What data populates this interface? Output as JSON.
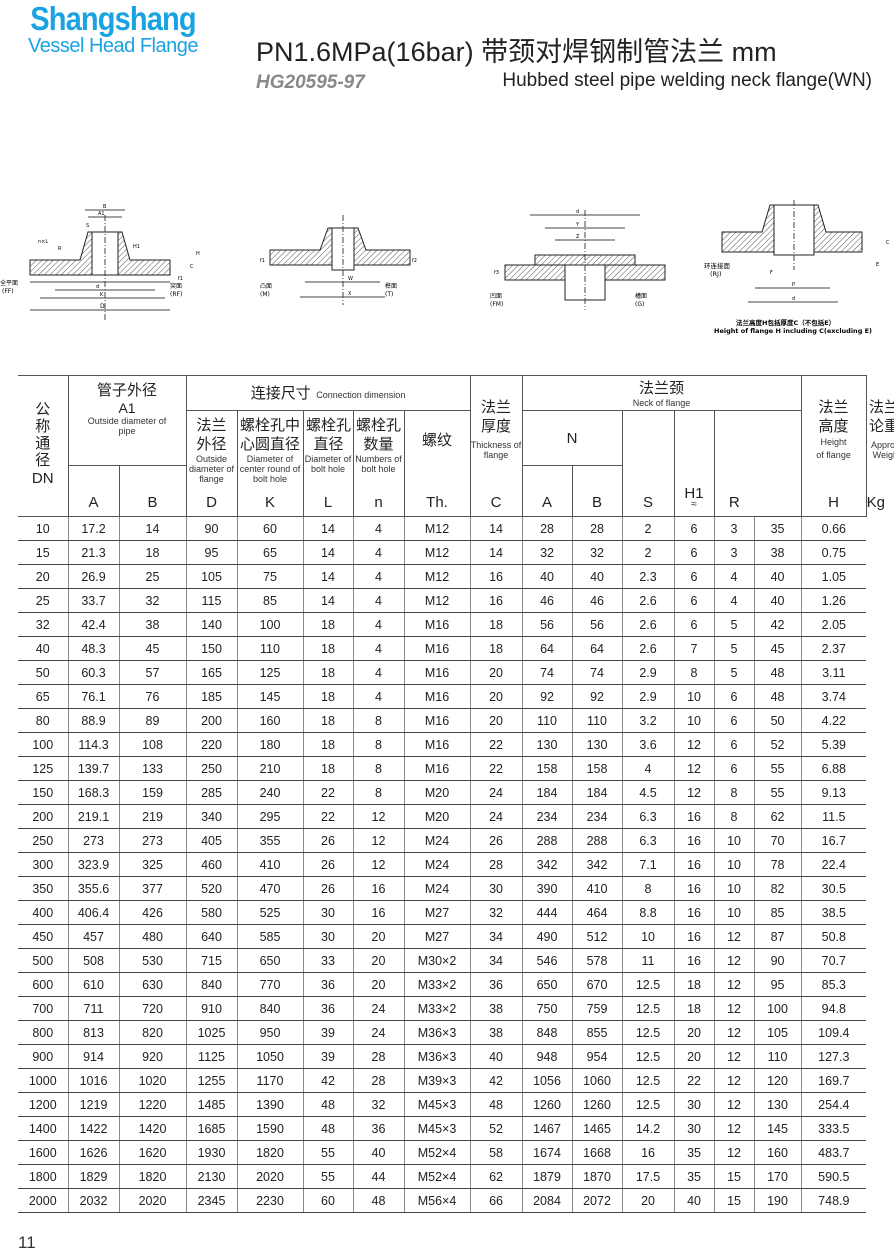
{
  "brand": {
    "name": "Shangshang",
    "tagline": "Vessel Head Flange",
    "color": "#1aa3e0"
  },
  "header": {
    "title": "PN1.6MPa(16bar) 带颈对焊钢制管法兰  mm",
    "standard": "HG20595-97",
    "subtitle": "Hubbed steel pipe welding neck flange(WN)"
  },
  "diagrams": {
    "d1": {
      "ff": "全平面",
      "ff_en": "(FF)",
      "rf": "突面",
      "rf_en": "(RF)",
      "dims": [
        "B",
        "A1",
        "S",
        "R",
        "n×L",
        "H1",
        "C",
        "H",
        "f1",
        "d",
        "K",
        "D"
      ]
    },
    "d2": {
      "m": "凸面",
      "m_en": "(M)",
      "t": "榫面",
      "t_en": "(T)",
      "dims": [
        "W",
        "X",
        "f1",
        "f2"
      ]
    },
    "d3": {
      "fm": "凹面",
      "fm_en": "(FM)",
      "g": "槽面",
      "g_en": "(G)",
      "dims": [
        "d",
        "Y",
        "Z",
        "f3"
      ]
    },
    "d4": {
      "rj": "环连接面",
      "rj_en": "(RJ)",
      "dims": [
        "F",
        "P",
        "d",
        "C",
        "E"
      ],
      "note_cn": "法兰高度H包括厚度C（不包括E）",
      "note_en": "Height of flange H including C(excluding E)"
    }
  },
  "table": {
    "headers": {
      "dn_cn": "公称通径",
      "dn": "DN",
      "pipe_cn": "管子外径",
      "pipe_sym": "A1",
      "pipe_en": "Outside diameter of pipe",
      "pipe_a": "A",
      "pipe_b": "B",
      "conn_cn": "连接尺寸",
      "conn_en": "Connection dimension",
      "d_cn": "法兰外径",
      "d_en": "Outside diameter of flange",
      "d": "D",
      "k_cn": "螺栓孔中心圆直径",
      "k_en": "Diameter of center round of bolt hole",
      "k": "K",
      "l_cn": "螺栓孔直径",
      "l_en": "Diameter of bolt hole",
      "l": "L",
      "n_cn": "螺栓孔数量",
      "n_en": "Numbers of bolt hole",
      "n": "n",
      "th_cn": "螺纹",
      "th": "Th.",
      "c_cn": "法兰厚度",
      "c_en": "Thickness of flange",
      "c": "C",
      "neck_cn": "法兰颈",
      "neck_en": "Neck of flange",
      "neck_n": "N",
      "neck_a": "A",
      "neck_b": "B",
      "s": "S",
      "h1": "H1",
      "h1_sub": "≈",
      "r": "R",
      "h_cn": "法兰高度",
      "h_en": "Height of flange",
      "h": "H",
      "w_cn": "法兰理论重量",
      "w_en": "Approx. Weight",
      "w": "Kg"
    },
    "rows": [
      [
        "10",
        "17.2",
        "14",
        "90",
        "60",
        "14",
        "4",
        "M12",
        "14",
        "28",
        "28",
        "2",
        "6",
        "3",
        "35",
        "0.66"
      ],
      [
        "15",
        "21.3",
        "18",
        "95",
        "65",
        "14",
        "4",
        "M12",
        "14",
        "32",
        "32",
        "2",
        "6",
        "3",
        "38",
        "0.75"
      ],
      [
        "20",
        "26.9",
        "25",
        "105",
        "75",
        "14",
        "4",
        "M12",
        "16",
        "40",
        "40",
        "2.3",
        "6",
        "4",
        "40",
        "1.05"
      ],
      [
        "25",
        "33.7",
        "32",
        "115",
        "85",
        "14",
        "4",
        "M12",
        "16",
        "46",
        "46",
        "2.6",
        "6",
        "4",
        "40",
        "1.26"
      ],
      [
        "32",
        "42.4",
        "38",
        "140",
        "100",
        "18",
        "4",
        "M16",
        "18",
        "56",
        "56",
        "2.6",
        "6",
        "5",
        "42",
        "2.05"
      ],
      [
        "40",
        "48.3",
        "45",
        "150",
        "110",
        "18",
        "4",
        "M16",
        "18",
        "64",
        "64",
        "2.6",
        "7",
        "5",
        "45",
        "2.37"
      ],
      [
        "50",
        "60.3",
        "57",
        "165",
        "125",
        "18",
        "4",
        "M16",
        "20",
        "74",
        "74",
        "2.9",
        "8",
        "5",
        "48",
        "3.11"
      ],
      [
        "65",
        "76.1",
        "76",
        "185",
        "145",
        "18",
        "4",
        "M16",
        "20",
        "92",
        "92",
        "2.9",
        "10",
        "6",
        "48",
        "3.74"
      ],
      [
        "80",
        "88.9",
        "89",
        "200",
        "160",
        "18",
        "8",
        "M16",
        "20",
        "110",
        "110",
        "3.2",
        "10",
        "6",
        "50",
        "4.22"
      ],
      [
        "100",
        "114.3",
        "108",
        "220",
        "180",
        "18",
        "8",
        "M16",
        "22",
        "130",
        "130",
        "3.6",
        "12",
        "6",
        "52",
        "5.39"
      ],
      [
        "125",
        "139.7",
        "133",
        "250",
        "210",
        "18",
        "8",
        "M16",
        "22",
        "158",
        "158",
        "4",
        "12",
        "6",
        "55",
        "6.88"
      ],
      [
        "150",
        "168.3",
        "159",
        "285",
        "240",
        "22",
        "8",
        "M20",
        "24",
        "184",
        "184",
        "4.5",
        "12",
        "8",
        "55",
        "9.13"
      ],
      [
        "200",
        "219.1",
        "219",
        "340",
        "295",
        "22",
        "12",
        "M20",
        "24",
        "234",
        "234",
        "6.3",
        "16",
        "8",
        "62",
        "11.5"
      ],
      [
        "250",
        "273",
        "273",
        "405",
        "355",
        "26",
        "12",
        "M24",
        "26",
        "288",
        "288",
        "6.3",
        "16",
        "10",
        "70",
        "16.7"
      ],
      [
        "300",
        "323.9",
        "325",
        "460",
        "410",
        "26",
        "12",
        "M24",
        "28",
        "342",
        "342",
        "7.1",
        "16",
        "10",
        "78",
        "22.4"
      ],
      [
        "350",
        "355.6",
        "377",
        "520",
        "470",
        "26",
        "16",
        "M24",
        "30",
        "390",
        "410",
        "8",
        "16",
        "10",
        "82",
        "30.5"
      ],
      [
        "400",
        "406.4",
        "426",
        "580",
        "525",
        "30",
        "16",
        "M27",
        "32",
        "444",
        "464",
        "8.8",
        "16",
        "10",
        "85",
        "38.5"
      ],
      [
        "450",
        "457",
        "480",
        "640",
        "585",
        "30",
        "20",
        "M27",
        "34",
        "490",
        "512",
        "10",
        "16",
        "12",
        "87",
        "50.8"
      ],
      [
        "500",
        "508",
        "530",
        "715",
        "650",
        "33",
        "20",
        "M30×2",
        "34",
        "546",
        "578",
        "11",
        "16",
        "12",
        "90",
        "70.7"
      ],
      [
        "600",
        "610",
        "630",
        "840",
        "770",
        "36",
        "20",
        "M33×2",
        "36",
        "650",
        "670",
        "12.5",
        "18",
        "12",
        "95",
        "85.3"
      ],
      [
        "700",
        "711",
        "720",
        "910",
        "840",
        "36",
        "24",
        "M33×2",
        "38",
        "750",
        "759",
        "12.5",
        "18",
        "12",
        "100",
        "94.8"
      ],
      [
        "800",
        "813",
        "820",
        "1025",
        "950",
        "39",
        "24",
        "M36×3",
        "38",
        "848",
        "855",
        "12.5",
        "20",
        "12",
        "105",
        "109.4"
      ],
      [
        "900",
        "914",
        "920",
        "1125",
        "1050",
        "39",
        "28",
        "M36×3",
        "40",
        "948",
        "954",
        "12.5",
        "20",
        "12",
        "110",
        "127.3"
      ],
      [
        "1000",
        "1016",
        "1020",
        "1255",
        "1170",
        "42",
        "28",
        "M39×3",
        "42",
        "1056",
        "1060",
        "12.5",
        "22",
        "12",
        "120",
        "169.7"
      ],
      [
        "1200",
        "1219",
        "1220",
        "1485",
        "1390",
        "48",
        "32",
        "M45×3",
        "48",
        "1260",
        "1260",
        "12.5",
        "30",
        "12",
        "130",
        "254.4"
      ],
      [
        "1400",
        "1422",
        "1420",
        "1685",
        "1590",
        "48",
        "36",
        "M45×3",
        "52",
        "1467",
        "1465",
        "14.2",
        "30",
        "12",
        "145",
        "333.5"
      ],
      [
        "1600",
        "1626",
        "1620",
        "1930",
        "1820",
        "55",
        "40",
        "M52×4",
        "58",
        "1674",
        "1668",
        "16",
        "35",
        "12",
        "160",
        "483.7"
      ],
      [
        "1800",
        "1829",
        "1820",
        "2130",
        "2020",
        "55",
        "44",
        "M52×4",
        "62",
        "1879",
        "1870",
        "17.5",
        "35",
        "15",
        "170",
        "590.5"
      ],
      [
        "2000",
        "2032",
        "2020",
        "2345",
        "2230",
        "60",
        "48",
        "M56×4",
        "66",
        "2084",
        "2072",
        "20",
        "40",
        "15",
        "190",
        "748.9"
      ]
    ]
  },
  "page_number": "11"
}
